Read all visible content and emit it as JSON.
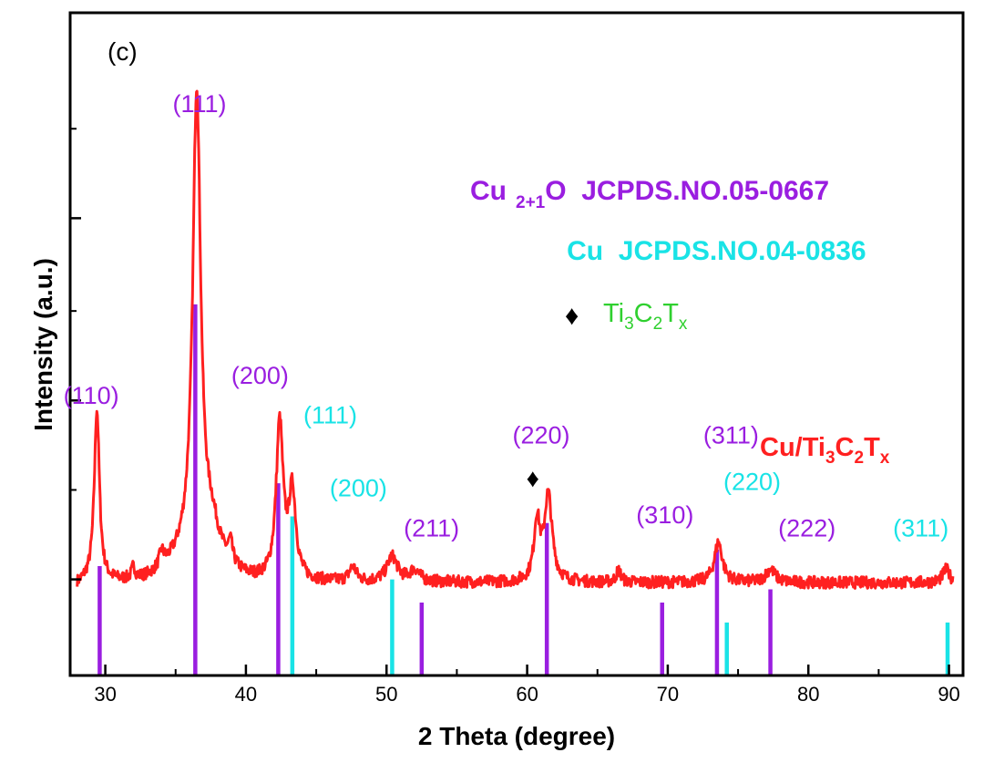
{
  "chart_data": {
    "type": "line",
    "panel_label": "(c)",
    "xlabel": "2 Theta (degree)",
    "ylabel": "Intensity (a.u.)",
    "xlim": [
      27.5,
      91
    ],
    "ylim": [
      0,
      100
    ],
    "xticks": [
      30,
      40,
      50,
      60,
      70,
      80,
      90
    ],
    "xtick_labels": [
      "30",
      "40",
      "50",
      "60",
      "70",
      "80",
      "90"
    ],
    "colors": {
      "pattern": "#ff2020",
      "cu2o": "#9a1ee0",
      "cu": "#19e3e6",
      "ti3c2tx": "#2fd02f",
      "marker": "#000000"
    },
    "series": [
      {
        "name": "Cu/Ti3C2Tx",
        "legend_main": "Cu/Ti",
        "legend_parts": [
          {
            "text": "Cu/Ti",
            "sub": false
          },
          {
            "text": "3",
            "sub": true
          },
          {
            "text": "C",
            "sub": false
          },
          {
            "text": "2",
            "sub": true
          },
          {
            "text": "T",
            "sub": false
          },
          {
            "text": "x",
            "sub": true
          }
        ],
        "baseline": 14,
        "noise": 0.9,
        "peaks": [
          [
            29.4,
            26,
            0.22
          ],
          [
            32.0,
            1.8,
            0.15
          ],
          [
            34.0,
            2.2,
            0.2
          ],
          [
            36.5,
            70,
            0.34
          ],
          [
            37.6,
            4,
            0.6
          ],
          [
            38.9,
            3,
            0.18
          ],
          [
            42.4,
            23.5,
            0.3
          ],
          [
            43.3,
            13,
            0.3
          ],
          [
            47.6,
            2.2,
            0.3
          ],
          [
            50.4,
            3.8,
            0.45
          ],
          [
            52.0,
            1.8,
            0.4
          ],
          [
            60.7,
            9,
            0.25
          ],
          [
            61.5,
            13,
            0.33
          ],
          [
            66.5,
            1.8,
            0.2
          ],
          [
            73.6,
            6,
            0.35
          ],
          [
            77.3,
            2,
            0.4
          ],
          [
            89.8,
            2,
            0.3
          ]
        ],
        "hump": [
          36.5,
          4,
          2.5
        ]
      }
    ],
    "references": [
      {
        "name": "Cu2+1O",
        "card": "JCPDS.NO.05-0667",
        "legend_prefix": "Cu",
        "legend_sub": "2+1",
        "legend_suffix": "O  JCPDS.NO.05-0667",
        "color": "#9a1ee0",
        "lines": [
          {
            "x": 29.6,
            "h": 16.5
          },
          {
            "x": 36.4,
            "h": 56
          },
          {
            "x": 42.3,
            "h": 29
          },
          {
            "x": 52.5,
            "h": 11
          },
          {
            "x": 61.4,
            "h": 23
          },
          {
            "x": 69.6,
            "h": 11
          },
          {
            "x": 73.5,
            "h": 19
          },
          {
            "x": 77.3,
            "h": 13
          }
        ],
        "labels": [
          {
            "text": "(110)",
            "x": 29.0,
            "y": 41
          },
          {
            "text": "(111)",
            "x": 36.7,
            "y": 85
          },
          {
            "text": "(200)",
            "x": 41.0,
            "y": 44
          },
          {
            "text": "(211)",
            "x": 53.2,
            "y": 21
          },
          {
            "text": "(220)",
            "x": 61.0,
            "y": 35
          },
          {
            "text": "(310)",
            "x": 69.8,
            "y": 23
          },
          {
            "text": "(311)",
            "x": 74.5,
            "y": 35
          },
          {
            "text": "(222)",
            "x": 79.9,
            "y": 21
          }
        ]
      },
      {
        "name": "Cu",
        "card": "JCPDS.NO.04-0836",
        "legend_prefix": "Cu",
        "legend_sub": "",
        "legend_suffix": "  JCPDS.NO.04-0836",
        "color": "#19e3e6",
        "lines": [
          {
            "x": 43.3,
            "h": 24
          },
          {
            "x": 50.4,
            "h": 14.5
          },
          {
            "x": 74.2,
            "h": 8
          },
          {
            "x": 89.9,
            "h": 8
          }
        ],
        "labels": [
          {
            "text": "(111)",
            "x": 46.0,
            "y": 38
          },
          {
            "text": "(200)",
            "x": 48.0,
            "y": 27
          },
          {
            "text": "(220)",
            "x": 76.0,
            "y": 28
          },
          {
            "text": "(311)",
            "x": 88.0,
            "y": 21
          }
        ]
      }
    ],
    "phase_marker": {
      "name": "Ti3C2Tx",
      "symbol": "♦",
      "x": 60.4,
      "y": 28.5,
      "legend_parts": [
        {
          "text": "Ti",
          "sub": false
        },
        {
          "text": "3",
          "sub": true
        },
        {
          "text": "C",
          "sub": false
        },
        {
          "text": "2",
          "sub": true
        },
        {
          "text": "T",
          "sub": false
        },
        {
          "text": "x",
          "sub": true
        }
      ]
    }
  }
}
